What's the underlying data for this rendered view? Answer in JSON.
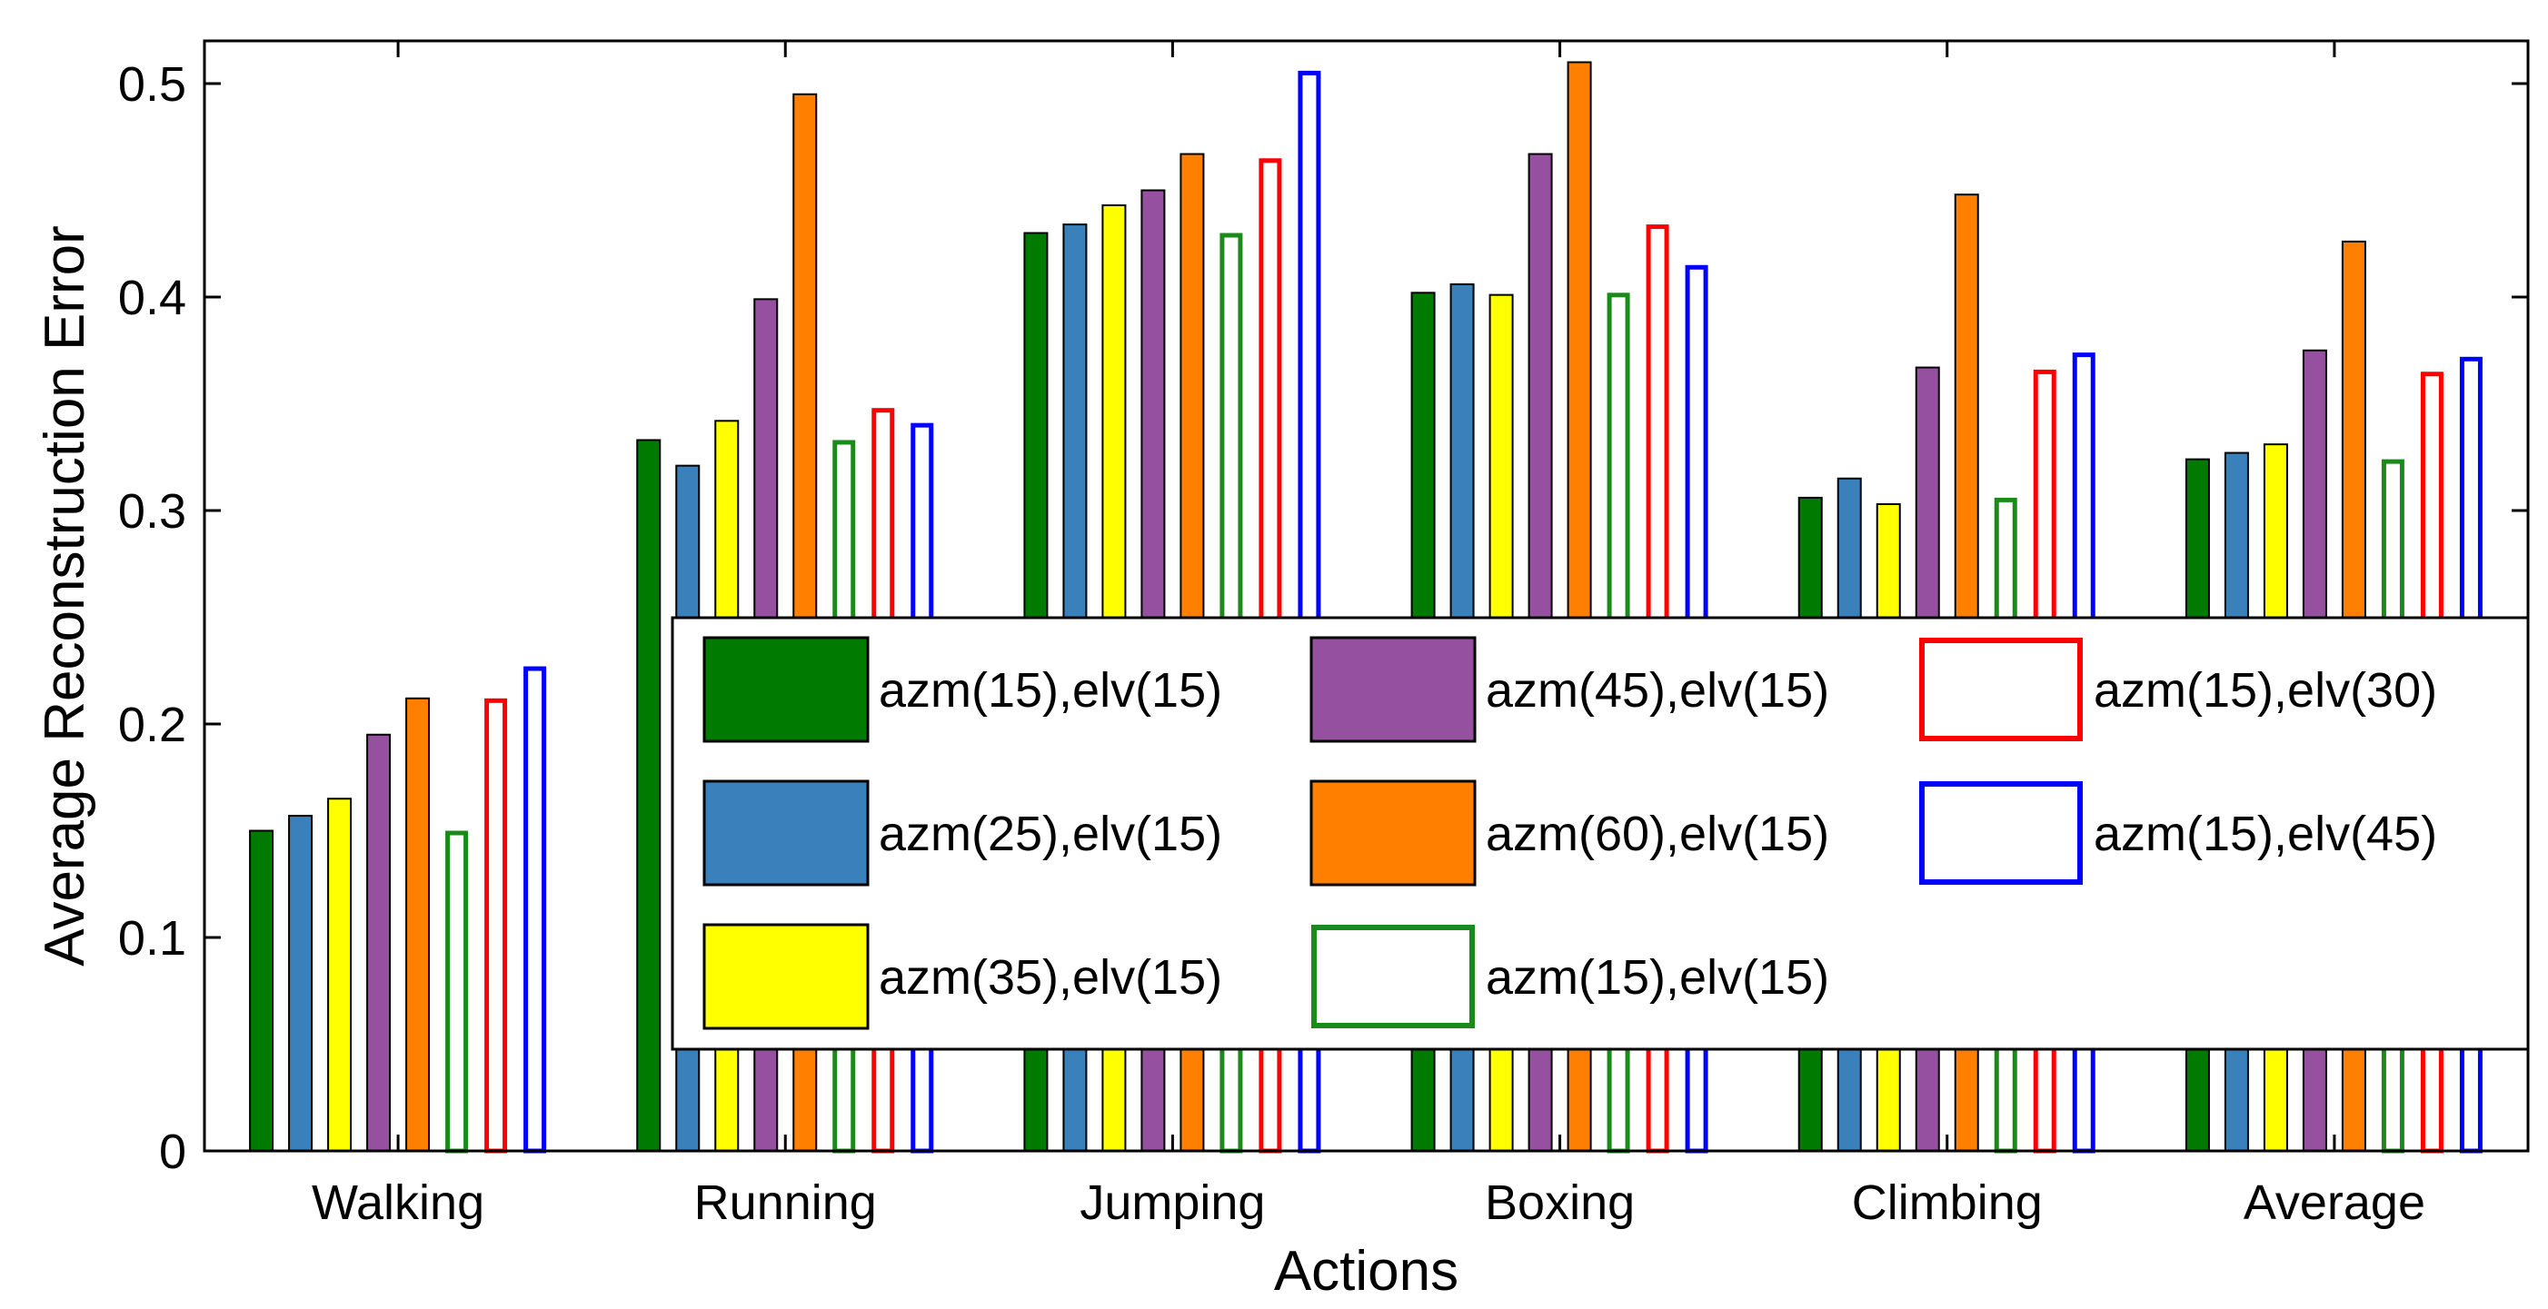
{
  "chart_data": {
    "type": "bar",
    "title": "",
    "xlabel": "Actions",
    "ylabel": "Average Reconstruction Error",
    "ylim": [
      0,
      0.52
    ],
    "yticks": [
      "0",
      "0.1",
      "0.2",
      "0.3",
      "0.4",
      "0.5"
    ],
    "categories": [
      "Walking",
      "Running",
      "Jumping",
      "Boxing",
      "Climbing",
      "Average"
    ],
    "legend_position": "lower-right",
    "series": [
      {
        "name": "azm(15),elv(15)",
        "style": "filled",
        "color": "#007a00",
        "values": [
          0.15,
          0.333,
          0.43,
          0.402,
          0.306,
          0.324
        ]
      },
      {
        "name": "azm(25),elv(15)",
        "style": "filled",
        "color": "#3a80bb",
        "values": [
          0.157,
          0.321,
          0.434,
          0.406,
          0.315,
          0.327
        ]
      },
      {
        "name": "azm(35),elv(15)",
        "style": "filled",
        "color": "#ffff00",
        "values": [
          0.165,
          0.342,
          0.443,
          0.401,
          0.303,
          0.331
        ]
      },
      {
        "name": "azm(45),elv(15)",
        "style": "filled",
        "color": "#9650a0",
        "values": [
          0.195,
          0.399,
          0.45,
          0.467,
          0.367,
          0.375
        ]
      },
      {
        "name": "azm(60),elv(15)",
        "style": "filled",
        "color": "#ff8000",
        "values": [
          0.212,
          0.495,
          0.467,
          0.51,
          0.448,
          0.426
        ]
      },
      {
        "name": "azm(15),elv(15)",
        "style": "outline",
        "color": "#1a8a1a",
        "values": [
          0.15,
          0.333,
          0.43,
          0.402,
          0.306,
          0.324
        ]
      },
      {
        "name": "azm(15),elv(30)",
        "style": "outline",
        "color": "#ff0000",
        "values": [
          0.212,
          0.348,
          0.465,
          0.434,
          0.366,
          0.365
        ]
      },
      {
        "name": "azm(15),elv(45)",
        "style": "outline",
        "color": "#0000ff",
        "values": [
          0.227,
          0.341,
          0.506,
          0.415,
          0.374,
          0.372
        ]
      }
    ]
  }
}
